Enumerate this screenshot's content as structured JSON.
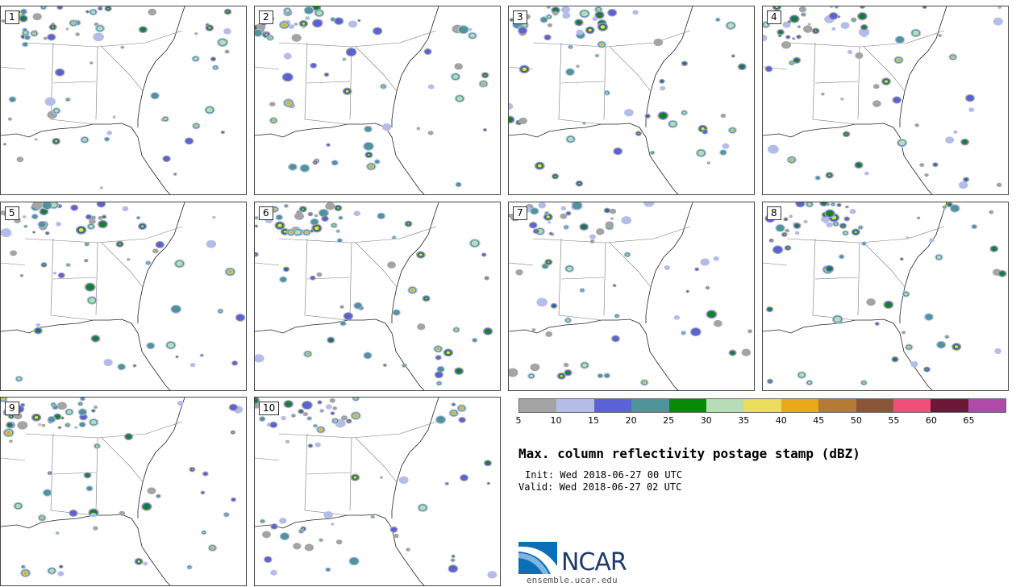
{
  "panels": [
    {
      "label": "1"
    },
    {
      "label": "2"
    },
    {
      "label": "3"
    },
    {
      "label": "4"
    },
    {
      "label": "5"
    },
    {
      "label": "6"
    },
    {
      "label": "7"
    },
    {
      "label": "8"
    },
    {
      "label": "9"
    },
    {
      "label": "10"
    }
  ],
  "colorbar": {
    "colors": [
      "#a4a4a4",
      "#b4bde8",
      "#5b62d6",
      "#4e9498",
      "#078a07",
      "#b7ddb7",
      "#ecdc5c",
      "#eba81a",
      "#b57b35",
      "#8a5637",
      "#ef4f78",
      "#6e1838",
      "#b04aa8"
    ],
    "tick_labels": [
      "5",
      "10",
      "15",
      "20",
      "25",
      "30",
      "35",
      "40",
      "45",
      "50",
      "55",
      "60",
      "65"
    ]
  },
  "title": "Max. column reflectivity postage stamp (dBZ)",
  "init": "Init: Wed 2018-06-27 00 UTC",
  "valid": "Valid: Wed 2018-06-27 02 UTC",
  "logo": {
    "name": "NCAR",
    "url": "ensemble.ucar.edu"
  }
}
